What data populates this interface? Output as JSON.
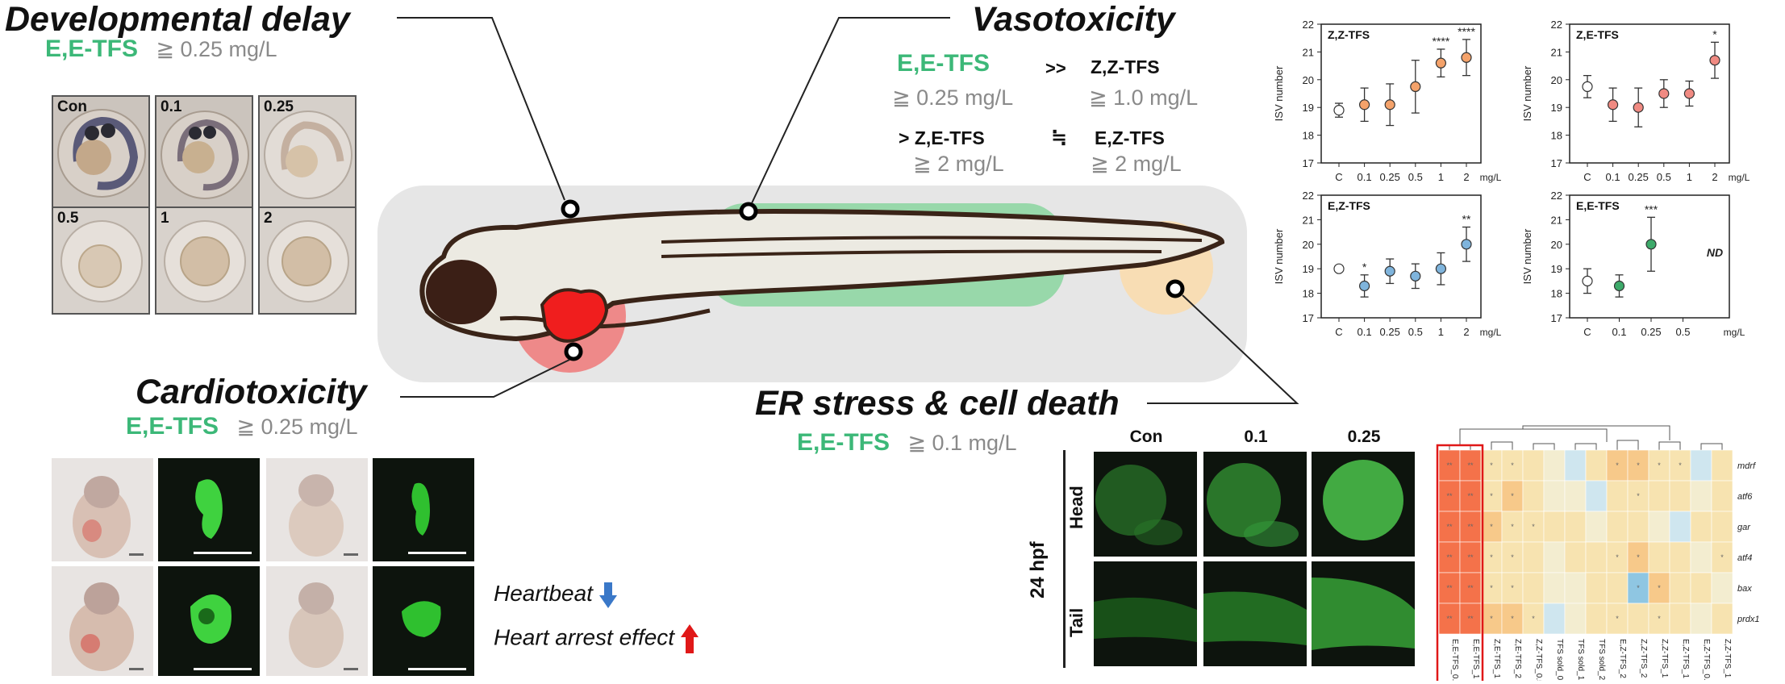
{
  "headings": {
    "developmental": "Developmental delay",
    "vasotoxicity": "Vasotoxicity",
    "cardiotoxicity": "Cardiotoxicity",
    "er_stress": "ER stress & cell death"
  },
  "thresholds": {
    "developmental": {
      "compound": "E,E-TFS",
      "value": "≧ 0.25 mg/L"
    },
    "vaso": {
      "compound_a": "E,E-TFS",
      "op_a": ">>",
      "compound_b": "Z,Z-TFS",
      "value_a": "≧ 0.25 mg/L",
      "value_b": "≧ 1.0 mg/L",
      "compound_c": "> Z,E-TFS",
      "op_b": "≒",
      "compound_d": "E,Z-TFS",
      "value_c": "≧ 2 mg/L",
      "value_d": "≧ 2 mg/L"
    },
    "cardio": {
      "compound": "E,E-TFS",
      "value": "≧ 0.25 mg/L"
    },
    "er": {
      "compound": "E,E-TFS",
      "value": "≧ 0.1 mg/L"
    }
  },
  "embryo_panels": [
    "Con",
    "0.1",
    "0.25",
    "0.5",
    "1",
    "2"
  ],
  "heart_effects": {
    "heartbeat": "Heartbeat",
    "arrest": "Heart arrest effect"
  },
  "er_panel": {
    "columns": [
      "Con",
      "0.1",
      "0.25"
    ],
    "rows": [
      "Head",
      "Tail"
    ],
    "stage": "24 hpf"
  },
  "colors": {
    "green_text": "#3cb878",
    "vaso_region": "#8fd6a3",
    "heart_region": "#f06a6a",
    "tail_region": "#f9dcae",
    "z_z": "#f4a26a",
    "z_e": "#f08a82",
    "e_z": "#7fb4dc",
    "e_e": "#3daa6a"
  },
  "chart_data": [
    {
      "type": "scatter",
      "title": "Z,Z-TFS",
      "ylabel": "ISV number",
      "categories": [
        "C",
        "0.1",
        "0.25",
        "0.5",
        "1",
        "2"
      ],
      "x_unit": "mg/L",
      "ylim": [
        17,
        22
      ],
      "values": [
        18.9,
        19.1,
        19.1,
        19.75,
        20.6,
        20.8
      ],
      "errors": [
        0.25,
        0.6,
        0.75,
        0.95,
        0.5,
        0.65
      ],
      "significance": [
        "",
        "",
        "",
        "",
        "****",
        "****"
      ]
    },
    {
      "type": "scatter",
      "title": "Z,E-TFS",
      "ylabel": "ISV number",
      "categories": [
        "C",
        "0.1",
        "0.25",
        "0.5",
        "1",
        "2"
      ],
      "x_unit": "mg/L",
      "ylim": [
        17,
        22
      ],
      "values": [
        19.75,
        19.1,
        19.0,
        19.5,
        19.5,
        20.7
      ],
      "errors": [
        0.4,
        0.6,
        0.7,
        0.5,
        0.45,
        0.65
      ],
      "significance": [
        "",
        "",
        "",
        "",
        "",
        "*"
      ]
    },
    {
      "type": "scatter",
      "title": "E,Z-TFS",
      "ylabel": "ISV number",
      "categories": [
        "C",
        "0.1",
        "0.25",
        "0.5",
        "1",
        "2"
      ],
      "x_unit": "mg/L",
      "ylim": [
        17,
        22
      ],
      "values": [
        19.0,
        18.3,
        18.9,
        18.7,
        19.0,
        20.0
      ],
      "errors": [
        0,
        0.45,
        0.5,
        0.5,
        0.65,
        0.7
      ],
      "significance": [
        "",
        "*",
        "",
        "",
        "",
        "**"
      ]
    },
    {
      "type": "scatter",
      "title": "E,E-TFS",
      "ylabel": "ISV number",
      "categories": [
        "C",
        "0.1",
        "0.25",
        "0.5"
      ],
      "x_unit": "mg/L",
      "ylim": [
        17,
        22
      ],
      "values": [
        18.5,
        18.3,
        20.0,
        null
      ],
      "errors": [
        0.5,
        0.45,
        1.1,
        0
      ],
      "significance": [
        "",
        "",
        "***",
        ""
      ],
      "annotation": "ND"
    },
    {
      "type": "heatmap",
      "rows": [
        "mdrf",
        "atf6",
        "gar",
        "atf4",
        "bax",
        "prdx1"
      ],
      "columns": [
        "E,E-TFS_0.5",
        "E,E-TFS_1",
        "Z,E-TFS_1",
        "Z,E-TFS_2",
        "Z,Z-TFS_0.5",
        "TFS sold_0.5",
        "TFS sold_1",
        "TFS sold_2",
        "E,Z-TFS_2",
        "Z,Z-TFS_2",
        "Z,Z-TFS_1",
        "E,Z-TFS_1",
        "E,Z-TFS_0.5",
        "Z,Z-TFS_1"
      ],
      "values": [
        [
          0.9,
          0.85,
          0.3,
          0.35,
          0.25,
          0.1,
          -0.2,
          0.2,
          0.45,
          0.5,
          0.35,
          0.3,
          -0.1,
          0.2
        ],
        [
          0.85,
          0.8,
          0.35,
          0.4,
          0.2,
          0.1,
          0.1,
          -0.1,
          0.2,
          0.3,
          0.2,
          0.25,
          0.1,
          0.15
        ],
        [
          0.95,
          0.9,
          0.4,
          0.3,
          0.3,
          0.2,
          0.2,
          0.1,
          0.15,
          0.2,
          0.1,
          -0.15,
          0.2,
          0.25
        ],
        [
          0.85,
          0.8,
          0.3,
          0.35,
          0.25,
          0.1,
          0.2,
          0.2,
          0.35,
          0.4,
          0.15,
          0.25,
          0.1,
          0.3
        ],
        [
          0.9,
          0.85,
          0.35,
          0.3,
          0.2,
          0.1,
          0.1,
          0.2,
          0.2,
          -0.6,
          0.4,
          0.2,
          0.15,
          0.1
        ],
        [
          0.95,
          0.9,
          0.4,
          0.45,
          0.35,
          -0.2,
          0.1,
          0.2,
          0.3,
          0.25,
          0.3,
          0.2,
          0.1,
          0.25
        ]
      ]
    }
  ]
}
